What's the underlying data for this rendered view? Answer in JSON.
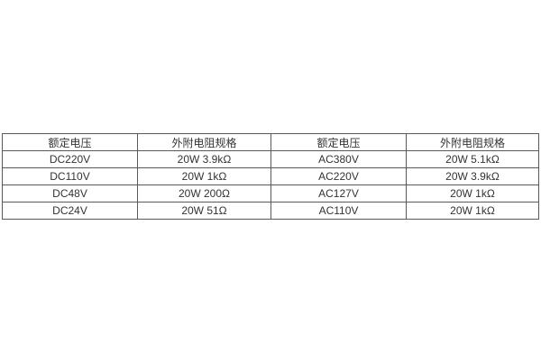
{
  "colors": {
    "background": "#ffffff",
    "table_border": "#595959",
    "table_text": "#333333"
  },
  "table": {
    "headers": [
      "额定电压",
      "外附电阻规格",
      "额定电压",
      "外附电阻规格"
    ],
    "rows": [
      [
        "DC220V",
        "20W 3.9kΩ",
        "AC380V",
        "20W 5.1kΩ"
      ],
      [
        "DC110V",
        "20W 1kΩ",
        "AC220V",
        "20W 3.9kΩ"
      ],
      [
        "DC48V",
        "20W 200Ω",
        "AC127V",
        "20W 1kΩ"
      ],
      [
        "DC24V",
        "20W 51Ω",
        "AC110V",
        "20W 1kΩ"
      ]
    ]
  }
}
